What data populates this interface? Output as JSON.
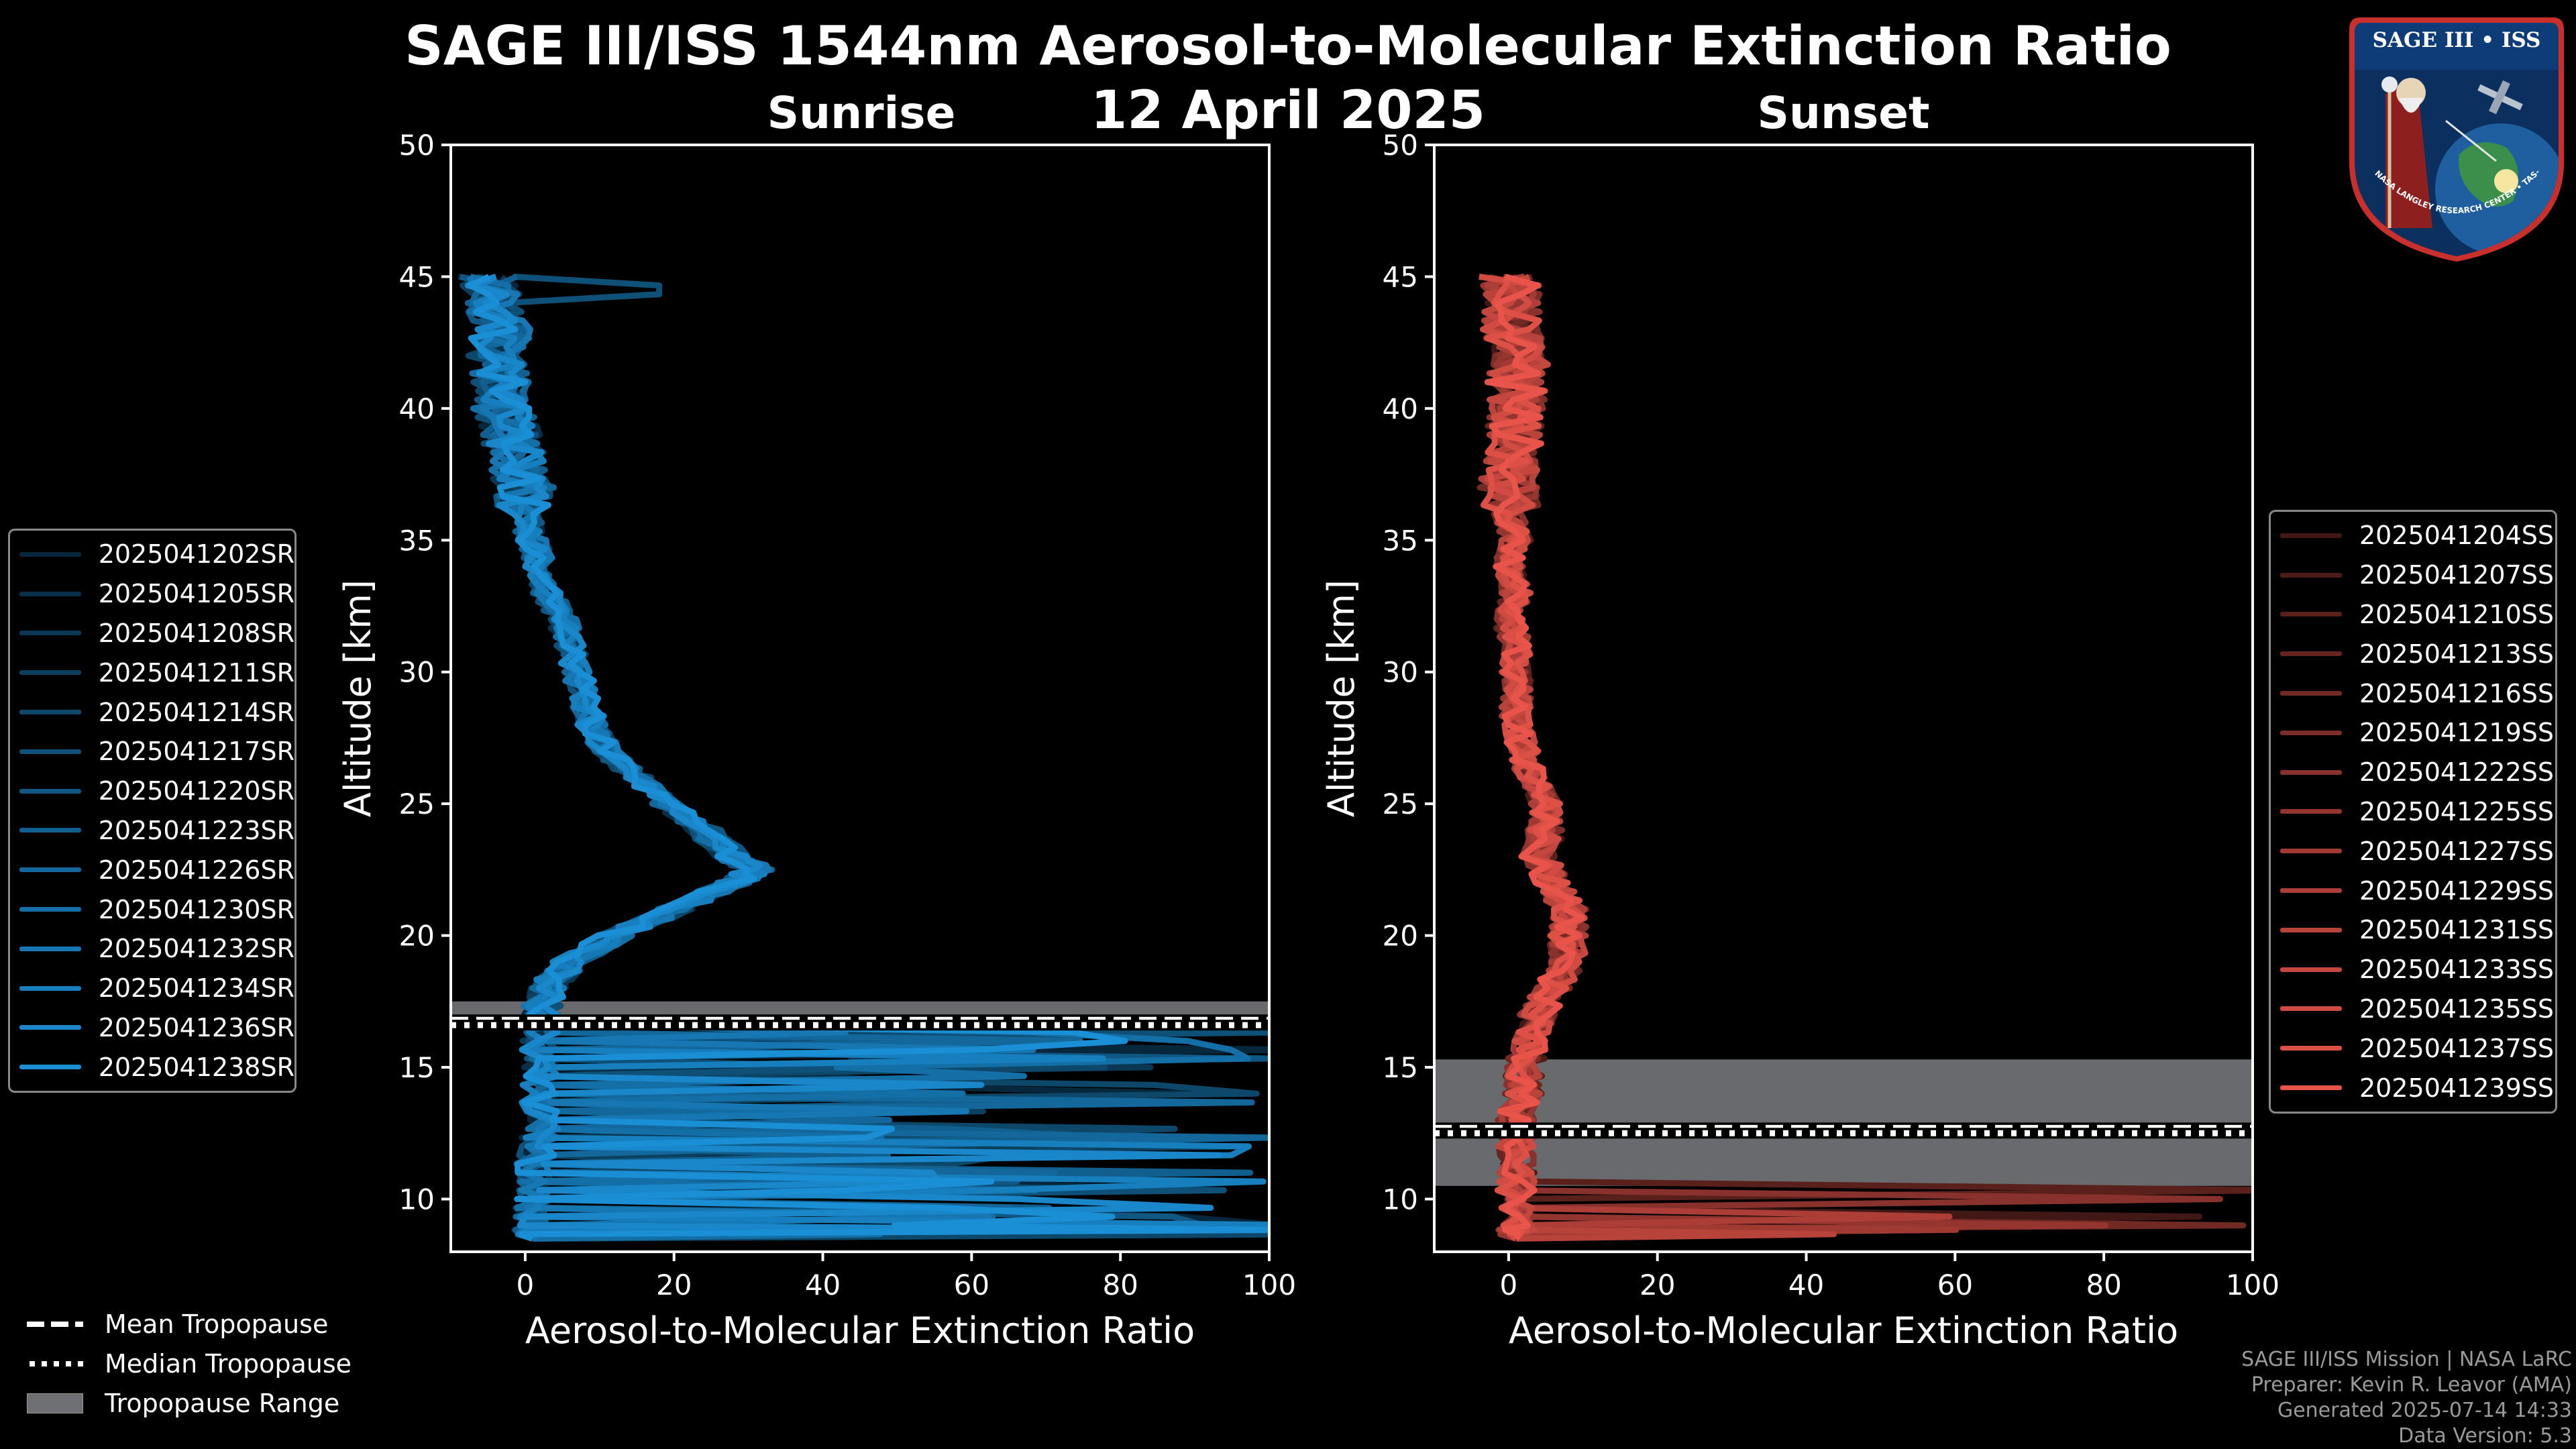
{
  "title": "SAGE III/ISS 1544nm Aerosol-to-Molecular Extinction Ratio",
  "date": "12 April 2025",
  "colors": {
    "sunrise": "#1a8fd6",
    "sunset": "#e8544a",
    "tropopause_range": "#6e7074"
  },
  "chart_data": [
    {
      "type": "line",
      "panel": "Sunrise",
      "title": "Sunrise",
      "xlabel": "Aerosol-to-Molecular Extinction Ratio",
      "ylabel": "Altitude [km]",
      "xlim": [
        -10,
        100
      ],
      "ylim": [
        8,
        50
      ],
      "xticks": [
        0,
        20,
        40,
        60,
        80,
        100
      ],
      "yticks": [
        10,
        15,
        20,
        25,
        30,
        35,
        40,
        45
      ],
      "tropopause": {
        "mean": 16.8,
        "median": 16.6,
        "range": [
          16.5,
          17.5
        ]
      },
      "mean_profile": {
        "altitude": [
          45,
          44,
          43,
          42,
          41,
          40,
          39,
          38,
          37,
          36,
          35,
          34,
          33,
          32,
          31,
          30,
          29,
          28,
          27,
          26,
          25,
          24,
          23,
          22.5,
          22,
          21,
          20,
          19,
          18,
          17,
          16,
          15,
          14,
          13,
          12,
          11,
          10,
          9,
          8.5
        ],
        "ratio": [
          -5,
          -4,
          -3,
          -4,
          -3,
          -3,
          -2,
          -1,
          0,
          0,
          1,
          2,
          3,
          5,
          6,
          7,
          8,
          9,
          11,
          15,
          19,
          24,
          28,
          31,
          28,
          20,
          12,
          6,
          3,
          2,
          2,
          2,
          2,
          2,
          2,
          1,
          1,
          1,
          1
        ]
      },
      "series": [
        {
          "name": "2025041202SR"
        },
        {
          "name": "2025041205SR"
        },
        {
          "name": "2025041208SR"
        },
        {
          "name": "2025041211SR"
        },
        {
          "name": "2025041214SR"
        },
        {
          "name": "2025041217SR"
        },
        {
          "name": "2025041220SR"
        },
        {
          "name": "2025041223SR"
        },
        {
          "name": "2025041226SR"
        },
        {
          "name": "2025041230SR"
        },
        {
          "name": "2025041232SR"
        },
        {
          "name": "2025041234SR"
        },
        {
          "name": "2025041236SR"
        },
        {
          "name": "2025041238SR"
        }
      ]
    },
    {
      "type": "line",
      "panel": "Sunset",
      "title": "Sunset",
      "xlabel": "Aerosol-to-Molecular Extinction Ratio",
      "ylabel": "Altitude [km]",
      "xlim": [
        -10,
        100
      ],
      "ylim": [
        8,
        50
      ],
      "xticks": [
        0,
        20,
        40,
        60,
        80,
        100
      ],
      "yticks": [
        10,
        15,
        20,
        25,
        30,
        35,
        40,
        45
      ],
      "tropopause": {
        "mean": 12.7,
        "median": 12.5,
        "range": [
          10.5,
          15.3
        ]
      },
      "mean_profile": {
        "altitude": [
          45,
          44,
          43,
          42,
          41,
          40,
          39,
          38,
          37,
          36,
          35,
          34,
          33,
          32,
          31,
          30,
          29,
          28,
          27,
          26,
          25,
          24,
          23,
          22,
          21,
          20,
          19,
          18,
          17,
          16,
          15,
          14,
          13,
          12,
          11,
          10,
          9,
          8.5
        ],
        "ratio": [
          0,
          1,
          0,
          2,
          1,
          1,
          1,
          0,
          0,
          0,
          1,
          0,
          1,
          0,
          1,
          1,
          1,
          1,
          2,
          3,
          5,
          5,
          4,
          6,
          8,
          8,
          8,
          6,
          4,
          3,
          2,
          2,
          1,
          1,
          1,
          1,
          1,
          1
        ]
      },
      "series": [
        {
          "name": "2025041204SS"
        },
        {
          "name": "2025041207SS"
        },
        {
          "name": "2025041210SS"
        },
        {
          "name": "2025041213SS"
        },
        {
          "name": "2025041216SS"
        },
        {
          "name": "2025041219SS"
        },
        {
          "name": "2025041222SS"
        },
        {
          "name": "2025041225SS"
        },
        {
          "name": "2025041227SS"
        },
        {
          "name": "2025041229SS"
        },
        {
          "name": "2025041231SS"
        },
        {
          "name": "2025041233SS"
        },
        {
          "name": "2025041235SS"
        },
        {
          "name": "2025041237SS"
        },
        {
          "name": "2025041239SS"
        }
      ]
    }
  ],
  "tropopause_legend": [
    "Mean Tropopause",
    "Median Tropopause",
    "Tropopause Range"
  ],
  "footer": {
    "line1": "SAGE III/ISS Mission | NASA LaRC",
    "line2": "Preparer: Kevin R. Leavor (AMA)",
    "line3": "Generated 2025-07-14 14:33",
    "line4": "Data Version: 5.3"
  },
  "logo": {
    "top_text": "SAGE III • ISS",
    "ring_text": "BALL • NASA LANGLEY RESEARCH CENTER • TAS-I • ESA"
  }
}
